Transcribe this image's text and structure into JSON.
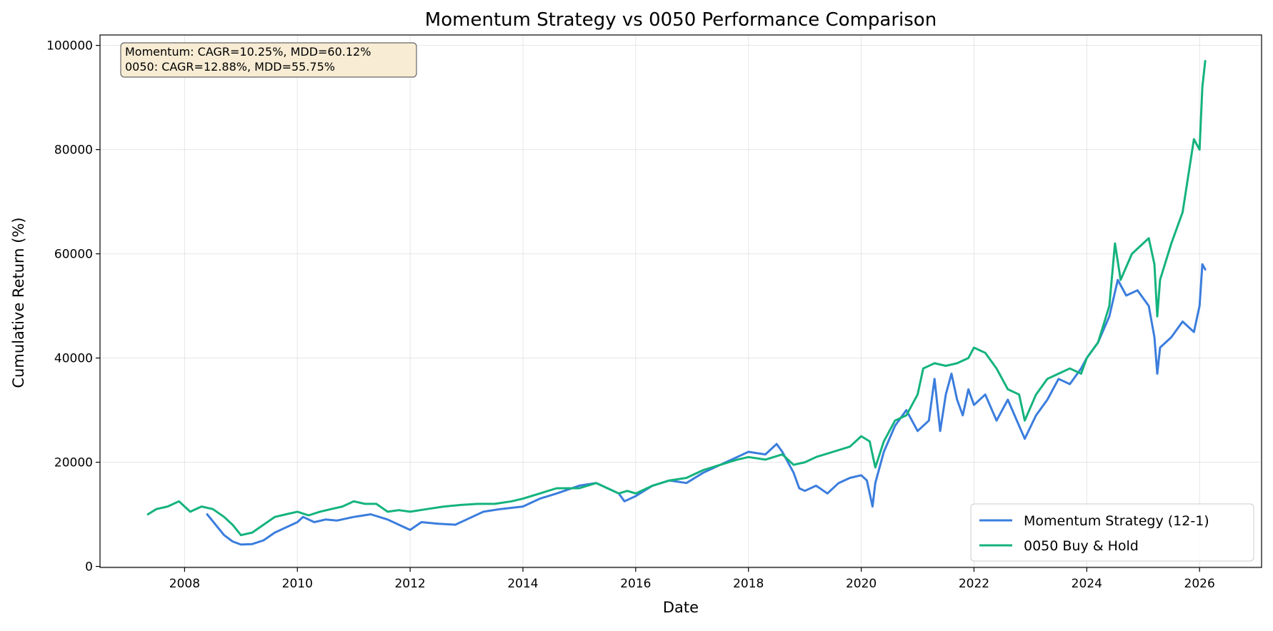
{
  "chart_data": {
    "type": "line",
    "title": "Momentum Strategy vs 0050 Performance Comparison",
    "xlabel": "Date",
    "ylabel": "Cumulative Return (%)",
    "xlim": [
      2006.5,
      2027.1
    ],
    "ylim": [
      -200,
      102000
    ],
    "x_ticks": [
      2008,
      2010,
      2012,
      2014,
      2016,
      2018,
      2020,
      2022,
      2024,
      2026
    ],
    "x_tick_labels": [
      "2008",
      "2010",
      "2012",
      "2014",
      "2016",
      "2018",
      "2020",
      "2022",
      "2024",
      "2026"
    ],
    "y_ticks": [
      0,
      20000,
      40000,
      60000,
      80000,
      100000
    ],
    "y_tick_labels": [
      "0",
      "20000",
      "40000",
      "60000",
      "80000",
      "100000"
    ],
    "grid": true,
    "legend_position": "bottom-right",
    "annotation_lines": [
      "Momentum: CAGR=10.25%, MDD=60.12%",
      "0050: CAGR=12.88%, MDD=55.75%"
    ],
    "series": [
      {
        "name": "Momentum Strategy (12-1)",
        "color": "#3b7ddd",
        "x": [
          2008.4,
          2008.55,
          2008.7,
          2008.85,
          2009.0,
          2009.2,
          2009.4,
          2009.6,
          2009.8,
          2010.0,
          2010.1,
          2010.3,
          2010.5,
          2010.7,
          2011.0,
          2011.3,
          2011.6,
          2011.8,
          2012.0,
          2012.2,
          2012.5,
          2012.8,
          2013.0,
          2013.3,
          2013.6,
          2014.0,
          2014.3,
          2014.6,
          2015.0,
          2015.3,
          2015.5,
          2015.7,
          2015.8,
          2016.0,
          2016.3,
          2016.6,
          2016.9,
          2017.2,
          2017.5,
          2017.8,
          2018.0,
          2018.3,
          2018.5,
          2018.6,
          2018.8,
          2018.9,
          2019.0,
          2019.2,
          2019.4,
          2019.6,
          2019.8,
          2020.0,
          2020.1,
          2020.2,
          2020.25,
          2020.4,
          2020.6,
          2020.8,
          2021.0,
          2021.2,
          2021.3,
          2021.4,
          2021.5,
          2021.6,
          2021.7,
          2021.8,
          2021.9,
          2022.0,
          2022.2,
          2022.4,
          2022.6,
          2022.8,
          2022.9,
          2023.1,
          2023.3,
          2023.5,
          2023.7,
          2023.9,
          2024.0,
          2024.2,
          2024.4,
          2024.55,
          2024.7,
          2024.9,
          2025.1,
          2025.2,
          2025.25,
          2025.3,
          2025.5,
          2025.7,
          2025.9,
          2026.0,
          2026.05,
          2026.1
        ],
        "values": [
          10000,
          8000,
          6000,
          4800,
          4200,
          4300,
          5000,
          6500,
          7500,
          8500,
          9500,
          8500,
          9000,
          8800,
          9500,
          10000,
          9000,
          8000,
          7000,
          8500,
          8200,
          8000,
          9000,
          10500,
          11000,
          11500,
          13000,
          14000,
          15500,
          16000,
          15000,
          14000,
          12500,
          13500,
          15500,
          16500,
          16000,
          18000,
          19500,
          21000,
          22000,
          21500,
          23500,
          22000,
          18000,
          15000,
          14500,
          15500,
          14000,
          16000,
          17000,
          17500,
          16500,
          11500,
          16000,
          22000,
          27000,
          30000,
          26000,
          28000,
          36000,
          26000,
          33000,
          37000,
          32000,
          29000,
          34000,
          31000,
          33000,
          28000,
          32000,
          27000,
          24500,
          29000,
          32000,
          36000,
          35000,
          38000,
          40000,
          43000,
          48000,
          55000,
          52000,
          53000,
          50000,
          44000,
          37000,
          42000,
          44000,
          47000,
          45000,
          50000,
          58000,
          57000
        ]
      },
      {
        "name": "0050 Buy & Hold",
        "color": "#14b37d",
        "x": [
          2007.35,
          2007.5,
          2007.7,
          2007.9,
          2008.1,
          2008.3,
          2008.5,
          2008.7,
          2008.85,
          2009.0,
          2009.2,
          2009.4,
          2009.6,
          2009.8,
          2010.0,
          2010.2,
          2010.4,
          2010.6,
          2010.8,
          2011.0,
          2011.2,
          2011.4,
          2011.6,
          2011.8,
          2012.0,
          2012.3,
          2012.6,
          2012.9,
          2013.2,
          2013.5,
          2013.8,
          2014.0,
          2014.3,
          2014.6,
          2015.0,
          2015.3,
          2015.5,
          2015.7,
          2015.85,
          2016.0,
          2016.3,
          2016.6,
          2016.9,
          2017.2,
          2017.5,
          2017.8,
          2018.0,
          2018.3,
          2018.6,
          2018.8,
          2019.0,
          2019.2,
          2019.5,
          2019.8,
          2020.0,
          2020.15,
          2020.25,
          2020.4,
          2020.6,
          2020.8,
          2021.0,
          2021.1,
          2021.3,
          2021.5,
          2021.7,
          2021.9,
          2022.0,
          2022.2,
          2022.4,
          2022.6,
          2022.8,
          2022.9,
          2023.1,
          2023.3,
          2023.5,
          2023.7,
          2023.9,
          2024.0,
          2024.2,
          2024.4,
          2024.5,
          2024.6,
          2024.8,
          2025.0,
          2025.1,
          2025.2,
          2025.25,
          2025.3,
          2025.5,
          2025.7,
          2025.8,
          2025.9,
          2026.0,
          2026.05,
          2026.1
        ],
        "values": [
          10000,
          11000,
          11500,
          12500,
          10500,
          11500,
          11000,
          9500,
          8000,
          6000,
          6500,
          8000,
          9500,
          10000,
          10500,
          9800,
          10500,
          11000,
          11500,
          12500,
          12000,
          12000,
          10500,
          10800,
          10500,
          11000,
          11500,
          11800,
          12000,
          12000,
          12500,
          13000,
          14000,
          15000,
          15000,
          16000,
          15000,
          14000,
          14500,
          14000,
          15500,
          16500,
          17000,
          18500,
          19500,
          20500,
          21000,
          20500,
          21500,
          19500,
          20000,
          21000,
          22000,
          23000,
          25000,
          24000,
          19000,
          24000,
          28000,
          29000,
          33000,
          38000,
          39000,
          38500,
          39000,
          40000,
          42000,
          41000,
          38000,
          34000,
          33000,
          28000,
          33000,
          36000,
          37000,
          38000,
          37000,
          40000,
          43000,
          50000,
          62000,
          55000,
          60000,
          62000,
          63000,
          58000,
          48000,
          55000,
          62000,
          68000,
          75000,
          82000,
          80000,
          92000,
          97000
        ]
      }
    ]
  }
}
